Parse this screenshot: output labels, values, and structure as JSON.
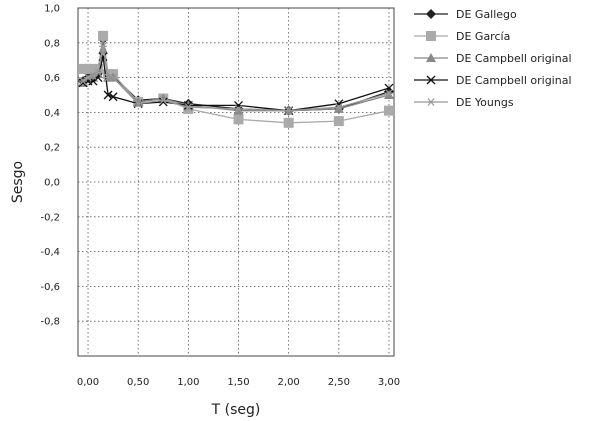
{
  "chart_data": {
    "type": "line",
    "xlabel": "T (seg)",
    "ylabel": "Sesgo",
    "xlim": [
      -0.1,
      3.05
    ],
    "ylim": [
      -1.0,
      1.0
    ],
    "x_ticks": [
      0,
      0.5,
      1.0,
      1.5,
      2.0,
      2.5,
      3.0
    ],
    "x_tick_labels": [
      "0,00",
      "0,50",
      "1,00",
      "1,50",
      "2,00",
      "2,50",
      "3,00"
    ],
    "y_ticks": [
      1.0,
      0.8,
      0.6,
      0.4,
      0.2,
      0.0,
      -0.2,
      -0.4,
      -0.6,
      -0.8
    ],
    "y_tick_labels": [
      "1,0",
      "0,8",
      "0,6",
      "0,4",
      "0,2",
      "0,0",
      "-0,2",
      "-0,4",
      "-0,6",
      "-0,8"
    ],
    "grid": true,
    "legend_position": "right",
    "series": [
      {
        "name": "DE Gallego",
        "marker": "diamond",
        "color": "#222222",
        "x": [
          -0.05,
          0.0,
          0.05,
          0.1,
          0.15,
          0.2,
          0.25,
          0.5,
          0.75,
          1.0,
          1.5,
          2.0,
          2.5,
          3.0
        ],
        "y": [
          0.58,
          0.6,
          0.62,
          0.65,
          0.82,
          0.61,
          0.61,
          0.47,
          0.48,
          0.45,
          0.42,
          0.41,
          0.42,
          0.52
        ]
      },
      {
        "name": "DE García",
        "marker": "square",
        "color": "#aaaaaa",
        "x": [
          -0.05,
          0.0,
          0.05,
          0.1,
          0.15,
          0.2,
          0.25,
          0.5,
          0.75,
          1.0,
          1.5,
          2.0,
          2.5,
          3.0
        ],
        "y": [
          0.65,
          0.65,
          0.65,
          0.65,
          0.84,
          0.62,
          0.62,
          0.46,
          0.48,
          0.42,
          0.36,
          0.34,
          0.35,
          0.41
        ]
      },
      {
        "name": "DE Campbell original",
        "marker": "triangle",
        "color": "#888888",
        "x": [
          -0.05,
          0.0,
          0.05,
          0.1,
          0.15,
          0.2,
          0.25,
          0.5,
          0.75,
          1.0,
          1.5,
          2.0,
          2.5,
          3.0
        ],
        "y": [
          0.57,
          0.59,
          0.6,
          0.62,
          0.76,
          0.6,
          0.6,
          0.46,
          0.48,
          0.44,
          0.41,
          0.41,
          0.42,
          0.5
        ]
      },
      {
        "name": "DE Campbell original",
        "marker": "x",
        "color": "#111111",
        "x": [
          -0.05,
          0.0,
          0.05,
          0.1,
          0.15,
          0.2,
          0.25,
          0.5,
          0.75,
          1.0,
          1.5,
          2.0,
          2.5,
          3.0
        ],
        "y": [
          0.57,
          0.58,
          0.58,
          0.6,
          0.72,
          0.5,
          0.49,
          0.45,
          0.46,
          0.44,
          0.44,
          0.41,
          0.45,
          0.54
        ]
      },
      {
        "name": "DE Youngs",
        "marker": "asterisk",
        "color": "#999999",
        "x": [
          -0.05,
          0.0,
          0.05,
          0.1,
          0.15,
          0.2,
          0.25,
          0.5,
          0.75,
          1.0,
          1.5,
          2.0,
          2.5,
          3.0
        ],
        "y": [
          0.58,
          0.6,
          0.61,
          0.63,
          0.78,
          0.6,
          0.6,
          0.45,
          0.47,
          0.43,
          0.42,
          0.41,
          0.43,
          0.51
        ]
      }
    ]
  }
}
